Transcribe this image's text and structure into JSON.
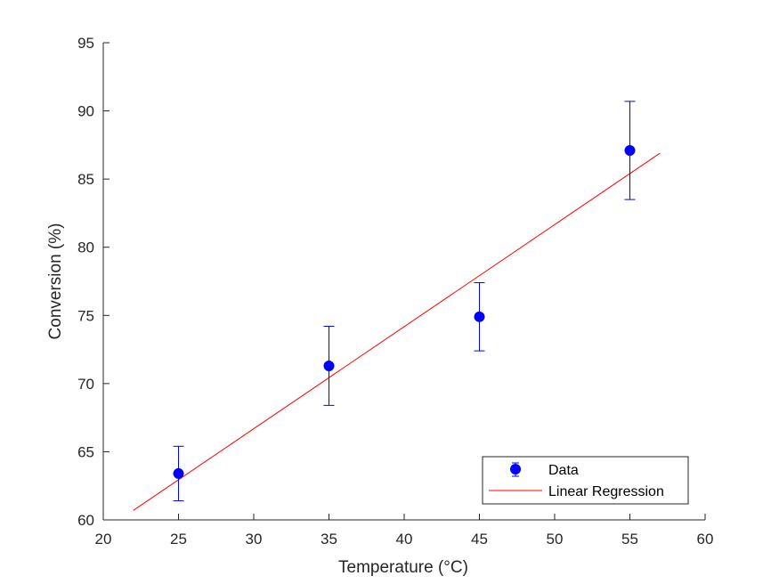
{
  "chart_data": {
    "type": "scatter",
    "xlabel": "Temperature (°C)",
    "ylabel": "Conversion (%)",
    "xlim": [
      20,
      60
    ],
    "ylim": [
      60,
      95
    ],
    "xticks": [
      "20",
      "25",
      "30",
      "35",
      "40",
      "45",
      "50",
      "55",
      "60"
    ],
    "yticks": [
      "60",
      "65",
      "70",
      "75",
      "80",
      "85",
      "90",
      "95"
    ],
    "grid": false,
    "legend_position": "bottom-right",
    "series": [
      {
        "name": "Data",
        "kind": "errorbar",
        "color": "#0000ff",
        "x": [
          25,
          35,
          45,
          55
        ],
        "y": [
          63.4,
          71.3,
          74.9,
          87.1
        ],
        "error": [
          2.0,
          2.9,
          2.5,
          3.6
        ]
      },
      {
        "name": "Linear Regression",
        "kind": "line",
        "color": "#ff0000",
        "x": [
          22,
          57
        ],
        "y": [
          60.7,
          86.9
        ]
      }
    ]
  }
}
